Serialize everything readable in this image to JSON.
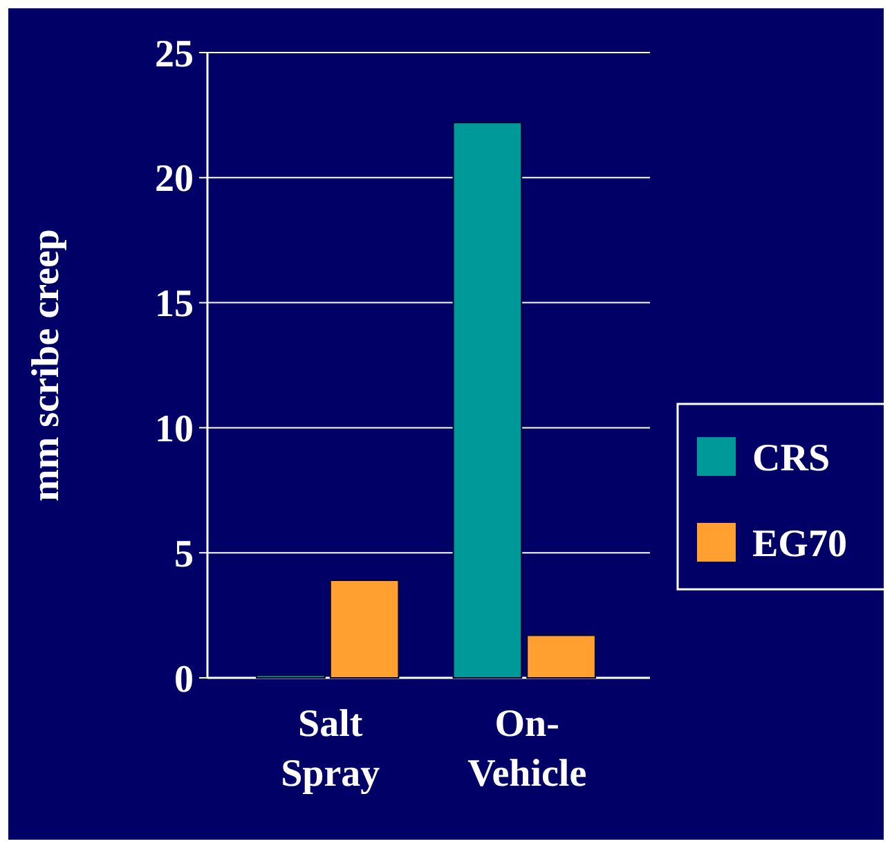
{
  "chart_data": {
    "type": "bar",
    "ylabel": "mm scribe creep",
    "categories": [
      "Salt Spray",
      "On-Vehicle"
    ],
    "series": [
      {
        "name": "CRS",
        "color": "#009999",
        "values": [
          0.1,
          22.2
        ]
      },
      {
        "name": "EG70",
        "color": "#ffa030",
        "values": [
          3.9,
          1.7
        ]
      }
    ],
    "ylim": [
      0,
      25
    ],
    "yticks": [
      0,
      5,
      10,
      15,
      20,
      25
    ],
    "grid": "y",
    "legend": "right"
  }
}
